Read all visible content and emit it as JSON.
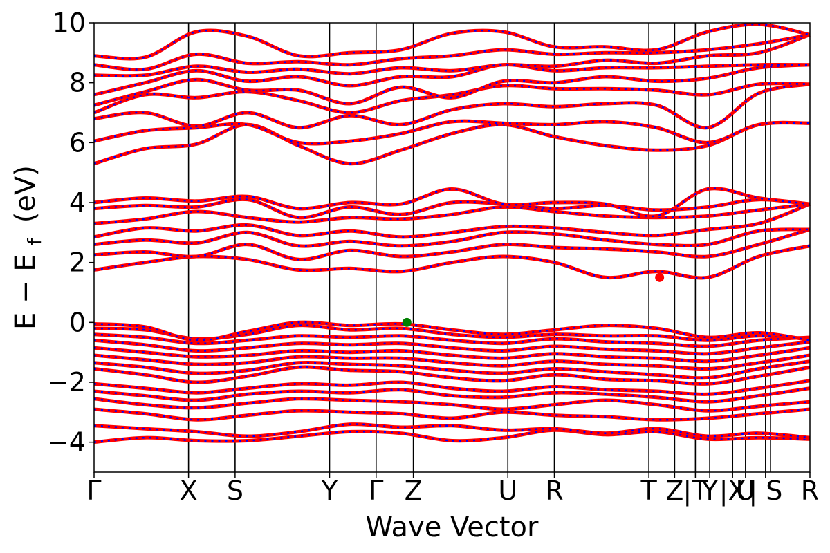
{
  "chart_data": {
    "type": "line",
    "title": "",
    "xlabel": "Wave Vector",
    "ylabel": "E − E",
    "ylabel_subscript": "f",
    "ylabel_unit": "(eV)",
    "ylim": [
      -5,
      10
    ],
    "yticks": [
      {
        "value": -4,
        "label": "−4"
      },
      {
        "value": -2,
        "label": "−2"
      },
      {
        "value": 0,
        "label": "0"
      },
      {
        "value": 2,
        "label": "2"
      },
      {
        "value": 4,
        "label": "4"
      },
      {
        "value": 6,
        "label": "6"
      },
      {
        "value": 8,
        "label": "8"
      },
      {
        "value": 10,
        "label": "10"
      }
    ],
    "xlim": [
      0,
      10
    ],
    "kpoint_labels": [
      {
        "label": "Γ",
        "x": 0.0
      },
      {
        "label": "X",
        "x": 1.32
      },
      {
        "label": "S",
        "x": 1.97
      },
      {
        "label": "Y",
        "x": 3.29
      },
      {
        "label": "Γ",
        "x": 3.94
      },
      {
        "label": "Z",
        "x": 4.46
      },
      {
        "label": "U",
        "x": 5.78
      },
      {
        "label": "R",
        "x": 6.43
      },
      {
        "label": "T",
        "x": 7.75
      },
      {
        "label": "Z",
        "x": 8.11
      },
      {
        "label": "|T",
        "x": 8.4
      },
      {
        "label": "Y",
        "x": 8.6
      },
      {
        "label": "|X",
        "x": 8.92
      },
      {
        "label": "U",
        "x": 9.1
      },
      {
        "label": "| S",
        "x": 9.38
      },
      {
        "label": "R",
        "x": 10.0
      }
    ],
    "segment_boundaries": [
      8.4,
      8.92,
      9.45
    ],
    "vbm": {
      "x": 4.37,
      "y": 0.0,
      "color": "#008000"
    },
    "cbm": {
      "x": 7.9,
      "y": 1.5,
      "color": "#ff0000"
    },
    "colors": {
      "band": "#ff0000",
      "band_dash": "#0000ff",
      "kline": "#000000"
    },
    "bands": [
      [
        -4.0,
        -3.85,
        -3.95,
        -3.95,
        -3.8,
        -3.65,
        -3.7,
        -3.95,
        -3.85,
        -3.6,
        -3.75,
        -3.65,
        -3.9,
        -3.85,
        -3.9
      ],
      [
        -3.45,
        -3.55,
        -3.65,
        -3.8,
        -3.65,
        -3.4,
        -3.5,
        -3.45,
        -3.6,
        -3.55,
        -3.7,
        -3.55,
        -3.8,
        -3.7,
        -3.85
      ],
      [
        -2.9,
        -3.05,
        -3.25,
        -3.1,
        -2.95,
        -3.0,
        -3.05,
        -3.2,
        -3.0,
        -3.1,
        -3.15,
        -3.25,
        -3.2,
        -3.05,
        -2.9
      ],
      [
        -2.55,
        -2.75,
        -2.85,
        -2.7,
        -2.55,
        -2.6,
        -2.65,
        -2.75,
        -2.9,
        -2.75,
        -2.6,
        -2.75,
        -2.95,
        -2.8,
        -2.65
      ],
      [
        -2.3,
        -2.45,
        -2.6,
        -2.4,
        -2.3,
        -2.35,
        -2.25,
        -2.45,
        -2.5,
        -2.35,
        -2.4,
        -2.5,
        -2.65,
        -2.45,
        -2.2
      ],
      [
        -2.05,
        -2.2,
        -2.35,
        -2.2,
        -2.05,
        -2.1,
        -2.0,
        -2.2,
        -2.3,
        -2.15,
        -2.25,
        -2.3,
        -2.4,
        -2.2,
        -1.95
      ],
      [
        -1.55,
        -1.75,
        -2.0,
        -1.8,
        -1.5,
        -1.6,
        -1.65,
        -1.85,
        -1.95,
        -1.75,
        -1.9,
        -1.95,
        -2.05,
        -1.8,
        -1.5
      ],
      [
        -1.35,
        -1.5,
        -1.7,
        -1.6,
        -1.35,
        -1.4,
        -1.45,
        -1.6,
        -1.7,
        -1.55,
        -1.65,
        -1.75,
        -1.85,
        -1.55,
        -1.3
      ],
      [
        -1.1,
        -1.25,
        -1.4,
        -1.35,
        -1.15,
        -1.2,
        -1.2,
        -1.35,
        -1.45,
        -1.3,
        -1.4,
        -1.45,
        -1.55,
        -1.35,
        -1.1
      ],
      [
        -0.85,
        -1.0,
        -1.15,
        -1.1,
        -0.95,
        -1.0,
        -0.95,
        -1.1,
        -1.2,
        -1.05,
        -1.15,
        -1.2,
        -1.3,
        -1.1,
        -0.85
      ],
      [
        -0.6,
        -0.75,
        -0.95,
        -0.85,
        -0.7,
        -0.75,
        -0.7,
        -0.85,
        -0.95,
        -0.8,
        -0.9,
        -0.95,
        -1.05,
        -0.85,
        -0.65
      ],
      [
        -0.4,
        -0.5,
        -0.7,
        -0.6,
        -0.45,
        -0.5,
        -0.45,
        -0.6,
        -0.7,
        -0.55,
        -0.65,
        -0.7,
        -0.8,
        -0.6,
        -0.5
      ],
      [
        -0.2,
        -0.25,
        -0.55,
        -0.4,
        -0.1,
        -0.25,
        -0.2,
        -0.4,
        -0.5,
        -0.4,
        -0.45,
        -0.45,
        -0.6,
        -0.45,
        -0.55
      ],
      [
        -0.05,
        -0.15,
        -0.6,
        -0.3,
        0.0,
        -0.1,
        -0.05,
        -0.25,
        -0.4,
        -0.25,
        -0.1,
        -0.2,
        -0.5,
        -0.35,
        -0.6
      ],
      [
        1.75,
        2.0,
        2.2,
        2.1,
        1.75,
        1.8,
        1.7,
        2.0,
        2.2,
        2.0,
        1.5,
        1.7,
        1.5,
        2.2,
        2.55
      ],
      [
        2.25,
        2.35,
        2.2,
        2.6,
        2.1,
        2.4,
        2.2,
        2.35,
        2.6,
        2.5,
        2.45,
        2.35,
        2.2,
        2.6,
        3.1
      ],
      [
        2.6,
        2.75,
        2.65,
        3.0,
        2.55,
        2.7,
        2.55,
        2.7,
        3.0,
        2.95,
        2.75,
        2.6,
        2.6,
        3.05,
        3.1
      ],
      [
        2.85,
        3.15,
        3.05,
        3.25,
        2.9,
        3.05,
        2.85,
        3.0,
        3.2,
        3.15,
        3.0,
        2.9,
        3.1,
        3.3,
        3.95
      ],
      [
        3.3,
        3.45,
        3.7,
        3.5,
        3.35,
        3.5,
        3.45,
        3.6,
        3.85,
        3.7,
        3.55,
        3.5,
        3.55,
        3.75,
        3.95
      ],
      [
        3.8,
        3.9,
        3.85,
        4.1,
        3.5,
        3.85,
        3.6,
        4.0,
        3.95,
        3.8,
        3.9,
        3.75,
        3.85,
        4.1,
        3.95
      ],
      [
        4.0,
        4.15,
        4.05,
        4.2,
        3.8,
        4.0,
        3.95,
        4.45,
        3.95,
        4.0,
        3.95,
        3.55,
        4.45,
        4.15,
        3.95
      ],
      [
        5.3,
        5.8,
        5.95,
        6.6,
        5.9,
        5.3,
        5.75,
        6.3,
        6.6,
        6.2,
        5.9,
        5.75,
        5.9,
        6.6,
        6.65
      ],
      [
        6.05,
        6.4,
        6.5,
        6.6,
        6.0,
        6.05,
        6.3,
        6.7,
        6.65,
        6.6,
        6.7,
        6.5,
        6.0,
        6.6,
        6.65
      ],
      [
        6.8,
        7.0,
        6.55,
        7.0,
        6.5,
        6.9,
        6.6,
        7.1,
        7.3,
        7.2,
        7.3,
        7.25,
        6.5,
        7.65,
        7.95
      ],
      [
        7.0,
        7.6,
        7.5,
        7.7,
        7.4,
        7.0,
        7.4,
        7.6,
        7.9,
        7.8,
        7.8,
        7.75,
        7.6,
        7.95,
        7.95
      ],
      [
        7.25,
        7.7,
        8.1,
        7.75,
        7.75,
        7.3,
        7.85,
        7.5,
        8.05,
        8.0,
        8.2,
        8.05,
        8.15,
        8.5,
        8.6
      ],
      [
        7.6,
        8.0,
        8.4,
        8.05,
        8.2,
        7.9,
        8.2,
        8.2,
        8.6,
        8.4,
        8.5,
        8.5,
        8.55,
        8.6,
        8.6
      ],
      [
        8.25,
        8.25,
        8.55,
        8.35,
        8.45,
        8.3,
        8.5,
        8.4,
        8.6,
        8.55,
        8.75,
        8.65,
        8.9,
        9.0,
        9.6
      ],
      [
        8.6,
        8.45,
        8.95,
        8.65,
        8.7,
        8.6,
        8.8,
        8.9,
        9.1,
        8.95,
        9.0,
        9.0,
        9.1,
        9.3,
        9.6
      ],
      [
        8.9,
        8.85,
        9.7,
        9.55,
        8.9,
        9.0,
        9.1,
        9.65,
        9.7,
        9.2,
        9.2,
        9.1,
        9.7,
        9.95,
        9.6
      ]
    ]
  }
}
